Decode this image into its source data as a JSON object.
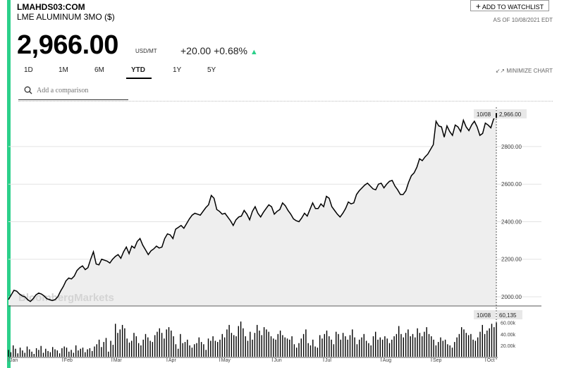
{
  "header": {
    "ticker": "LMAHDS03:COM",
    "instrument": "LME ALUMINUM 3MO ($)",
    "price": "2,966.00",
    "unit": "USD/MT",
    "change": "+20.00 +0.68%",
    "watchlist_label": "ADD TO WATCHLIST",
    "as_of": "AS OF 10/08/2021 EDT"
  },
  "ranges": [
    "1D",
    "1M",
    "6M",
    "YTD",
    "1Y",
    "5Y"
  ],
  "active_range": "YTD",
  "minimize_label": "MINIMIZE CHART",
  "search": {
    "placeholder": "Add a comparison"
  },
  "watermark": "BloombergMarkets",
  "colors": {
    "accent": "#2bd08a",
    "line": "#000000",
    "fill": "#eeeeee"
  },
  "chart_data": {
    "type": "line",
    "price_axis": {
      "ticks": [
        "2000.00",
        "2200.00",
        "2400.00",
        "2600.00",
        "2800.00"
      ],
      "ylim": [
        1955,
        3010
      ]
    },
    "x_labels": [
      "Jan",
      "Feb",
      "Mar",
      "Apr",
      "May",
      "Jun",
      "Jul",
      "Aug",
      "Sep",
      "Oct"
    ],
    "last_label": {
      "date": "10/08",
      "value": "2,966.00"
    },
    "series": [
      {
        "values": [
          1985,
          2010,
          2035,
          2030,
          2015,
          2005,
          2000,
          1985,
          1975,
          1990,
          2010,
          2020,
          2015,
          2005,
          1990,
          1985,
          1980,
          1985,
          2000,
          2030,
          2055,
          2085,
          2100,
          2095,
          2110,
          2140,
          2155,
          2165,
          2145,
          2155,
          2200,
          2240,
          2175,
          2170,
          2200,
          2195,
          2190,
          2180,
          2200,
          2215,
          2225,
          2205,
          2240,
          2265,
          2230,
          2270,
          2260,
          2295,
          2310,
          2275,
          2250,
          2225,
          2245,
          2255,
          2270,
          2260,
          2265,
          2310,
          2335,
          2330,
          2310,
          2360,
          2370,
          2380,
          2365,
          2390,
          2415,
          2435,
          2445,
          2440,
          2435,
          2455,
          2475,
          2490,
          2540,
          2525,
          2465,
          2455,
          2440,
          2445,
          2425,
          2405,
          2380,
          2410,
          2425,
          2430,
          2460,
          2440,
          2410,
          2455,
          2480,
          2445,
          2425,
          2450,
          2470,
          2490,
          2480,
          2440,
          2455,
          2465,
          2500,
          2485,
          2460,
          2440,
          2415,
          2405,
          2400,
          2420,
          2445,
          2430,
          2465,
          2500,
          2470,
          2470,
          2495,
          2480,
          2535,
          2525,
          2480,
          2460,
          2440,
          2425,
          2445,
          2470,
          2505,
          2495,
          2500,
          2545,
          2565,
          2580,
          2595,
          2605,
          2590,
          2575,
          2570,
          2600,
          2605,
          2580,
          2600,
          2615,
          2620,
          2590,
          2570,
          2545,
          2545,
          2565,
          2610,
          2645,
          2660,
          2690,
          2735,
          2725,
          2745,
          2760,
          2785,
          2810,
          2935,
          2910,
          2905,
          2850,
          2910,
          2880,
          2860,
          2915,
          2905,
          2880,
          2940,
          2905,
          2885,
          2915,
          2935,
          2905,
          2860,
          2870,
          2925,
          2915,
          2900,
          2946,
          2966
        ]
      }
    ],
    "volume": {
      "label": {
        "date": "10/08",
        "value": "60,135"
      },
      "ticks": [
        "20.00k",
        "40.00k",
        "60.00k"
      ],
      "ylim": [
        0,
        72000
      ],
      "values": [
        12000,
        8000,
        20000,
        14000,
        6000,
        16000,
        11000,
        7000,
        18000,
        13000,
        9000,
        5000,
        15000,
        12000,
        19000,
        7000,
        14000,
        10000,
        8000,
        17000,
        13000,
        11000,
        6000,
        15000,
        18000,
        16000,
        9000,
        12000,
        7000,
        20000,
        11000,
        14000,
        16000,
        8000,
        13000,
        15000,
        10000,
        18000,
        22000,
        30000,
        17000,
        26000,
        33000,
        9000,
        28000,
        21000,
        58000,
        42000,
        48000,
        56000,
        50000,
        32000,
        25000,
        28000,
        42000,
        36000,
        24000,
        20000,
        30000,
        40000,
        34000,
        28000,
        26000,
        38000,
        44000,
        50000,
        42000,
        32000,
        48000,
        52000,
        46000,
        36000,
        22000,
        14000,
        40000,
        24000,
        26000,
        30000,
        20000,
        16000,
        22000,
        24000,
        34000,
        26000,
        22000,
        12000,
        32000,
        28000,
        36000,
        28000,
        26000,
        30000,
        40000,
        34000,
        48000,
        56000,
        42000,
        38000,
        36000,
        54000,
        62000,
        50000,
        36000,
        28000,
        44000,
        30000,
        42000,
        56000,
        46000,
        38000,
        52000,
        48000,
        44000,
        36000,
        32000,
        30000,
        40000,
        46000,
        38000,
        34000,
        32000,
        30000,
        36000,
        22000,
        16000,
        24000,
        32000,
        40000,
        48000,
        24000,
        20000,
        30000,
        18000,
        16000,
        38000,
        32000,
        40000,
        46000,
        36000,
        30000,
        22000,
        44000,
        40000,
        30000,
        42000,
        36000,
        30000,
        38000,
        48000,
        34000,
        22000,
        30000,
        34000,
        40000,
        28000,
        24000,
        20000,
        36000,
        44000,
        30000,
        34000,
        30000,
        36000,
        32000,
        24000,
        30000,
        36000,
        40000,
        54000,
        40000,
        34000,
        42000,
        48000,
        36000,
        40000,
        34000,
        50000,
        42000,
        36000,
        44000,
        52000,
        40000,
        36000,
        30000,
        20000,
        26000,
        34000,
        28000,
        30000,
        22000,
        20000,
        16000,
        26000,
        34000,
        40000,
        52000,
        48000,
        42000,
        38000,
        40000,
        30000,
        28000,
        34000,
        44000,
        56000,
        40000,
        46000,
        50000,
        58000,
        52000,
        60135
      ]
    }
  }
}
